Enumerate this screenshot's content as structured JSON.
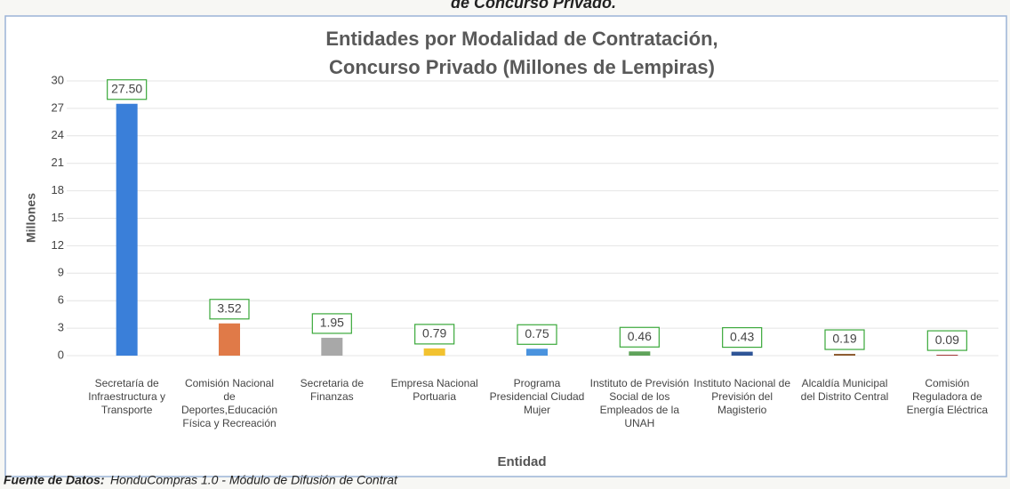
{
  "header_fragment": "de Concurso Privado.",
  "chart_data": {
    "type": "bar",
    "title": [
      "Entidades por Modalidad de Contratación,",
      "Concurso Privado (Millones de Lempiras)"
    ],
    "ylabel": "Millones",
    "xlabel": "Entidad",
    "categories": [
      "Secretaría de Infraestructura y Transporte",
      "Comisión Nacional de Deportes,Educación Física y Recreación",
      "Secretaria de Finanzas",
      "Empresa Nacional Portuaria",
      "Programa Presidencial Ciudad Mujer",
      "Instituto de Previsión Social de los Empleados de la UNAH",
      "Instituto Nacional de Previsión del Magisterio",
      "Alcaldía Municipal del Distrito Central",
      "Comisión Reguladora de Energía Eléctrica"
    ],
    "values": [
      27.5,
      3.52,
      1.95,
      0.79,
      0.75,
      0.46,
      0.43,
      0.19,
      0.09
    ],
    "value_labels": [
      "27.50",
      "3.52",
      "1.95",
      "0.79",
      "0.75",
      "0.46",
      "0.43",
      "0.19",
      "0.09"
    ],
    "colors": [
      "#3a7fd9",
      "#e07a48",
      "#a8a8a8",
      "#f2c230",
      "#4a93de",
      "#5fa35a",
      "#2f5597",
      "#8c5a2e",
      "#9e2a2a"
    ],
    "ylim": [
      0,
      30
    ],
    "yticks": [
      0,
      3,
      6,
      9,
      12,
      15,
      18,
      21,
      24,
      27,
      30
    ],
    "grid": true
  },
  "footer": {
    "label": "Fuente de Datos:",
    "text": "HonduCompras 1.0 - Módulo de Difusión de Contrat"
  }
}
